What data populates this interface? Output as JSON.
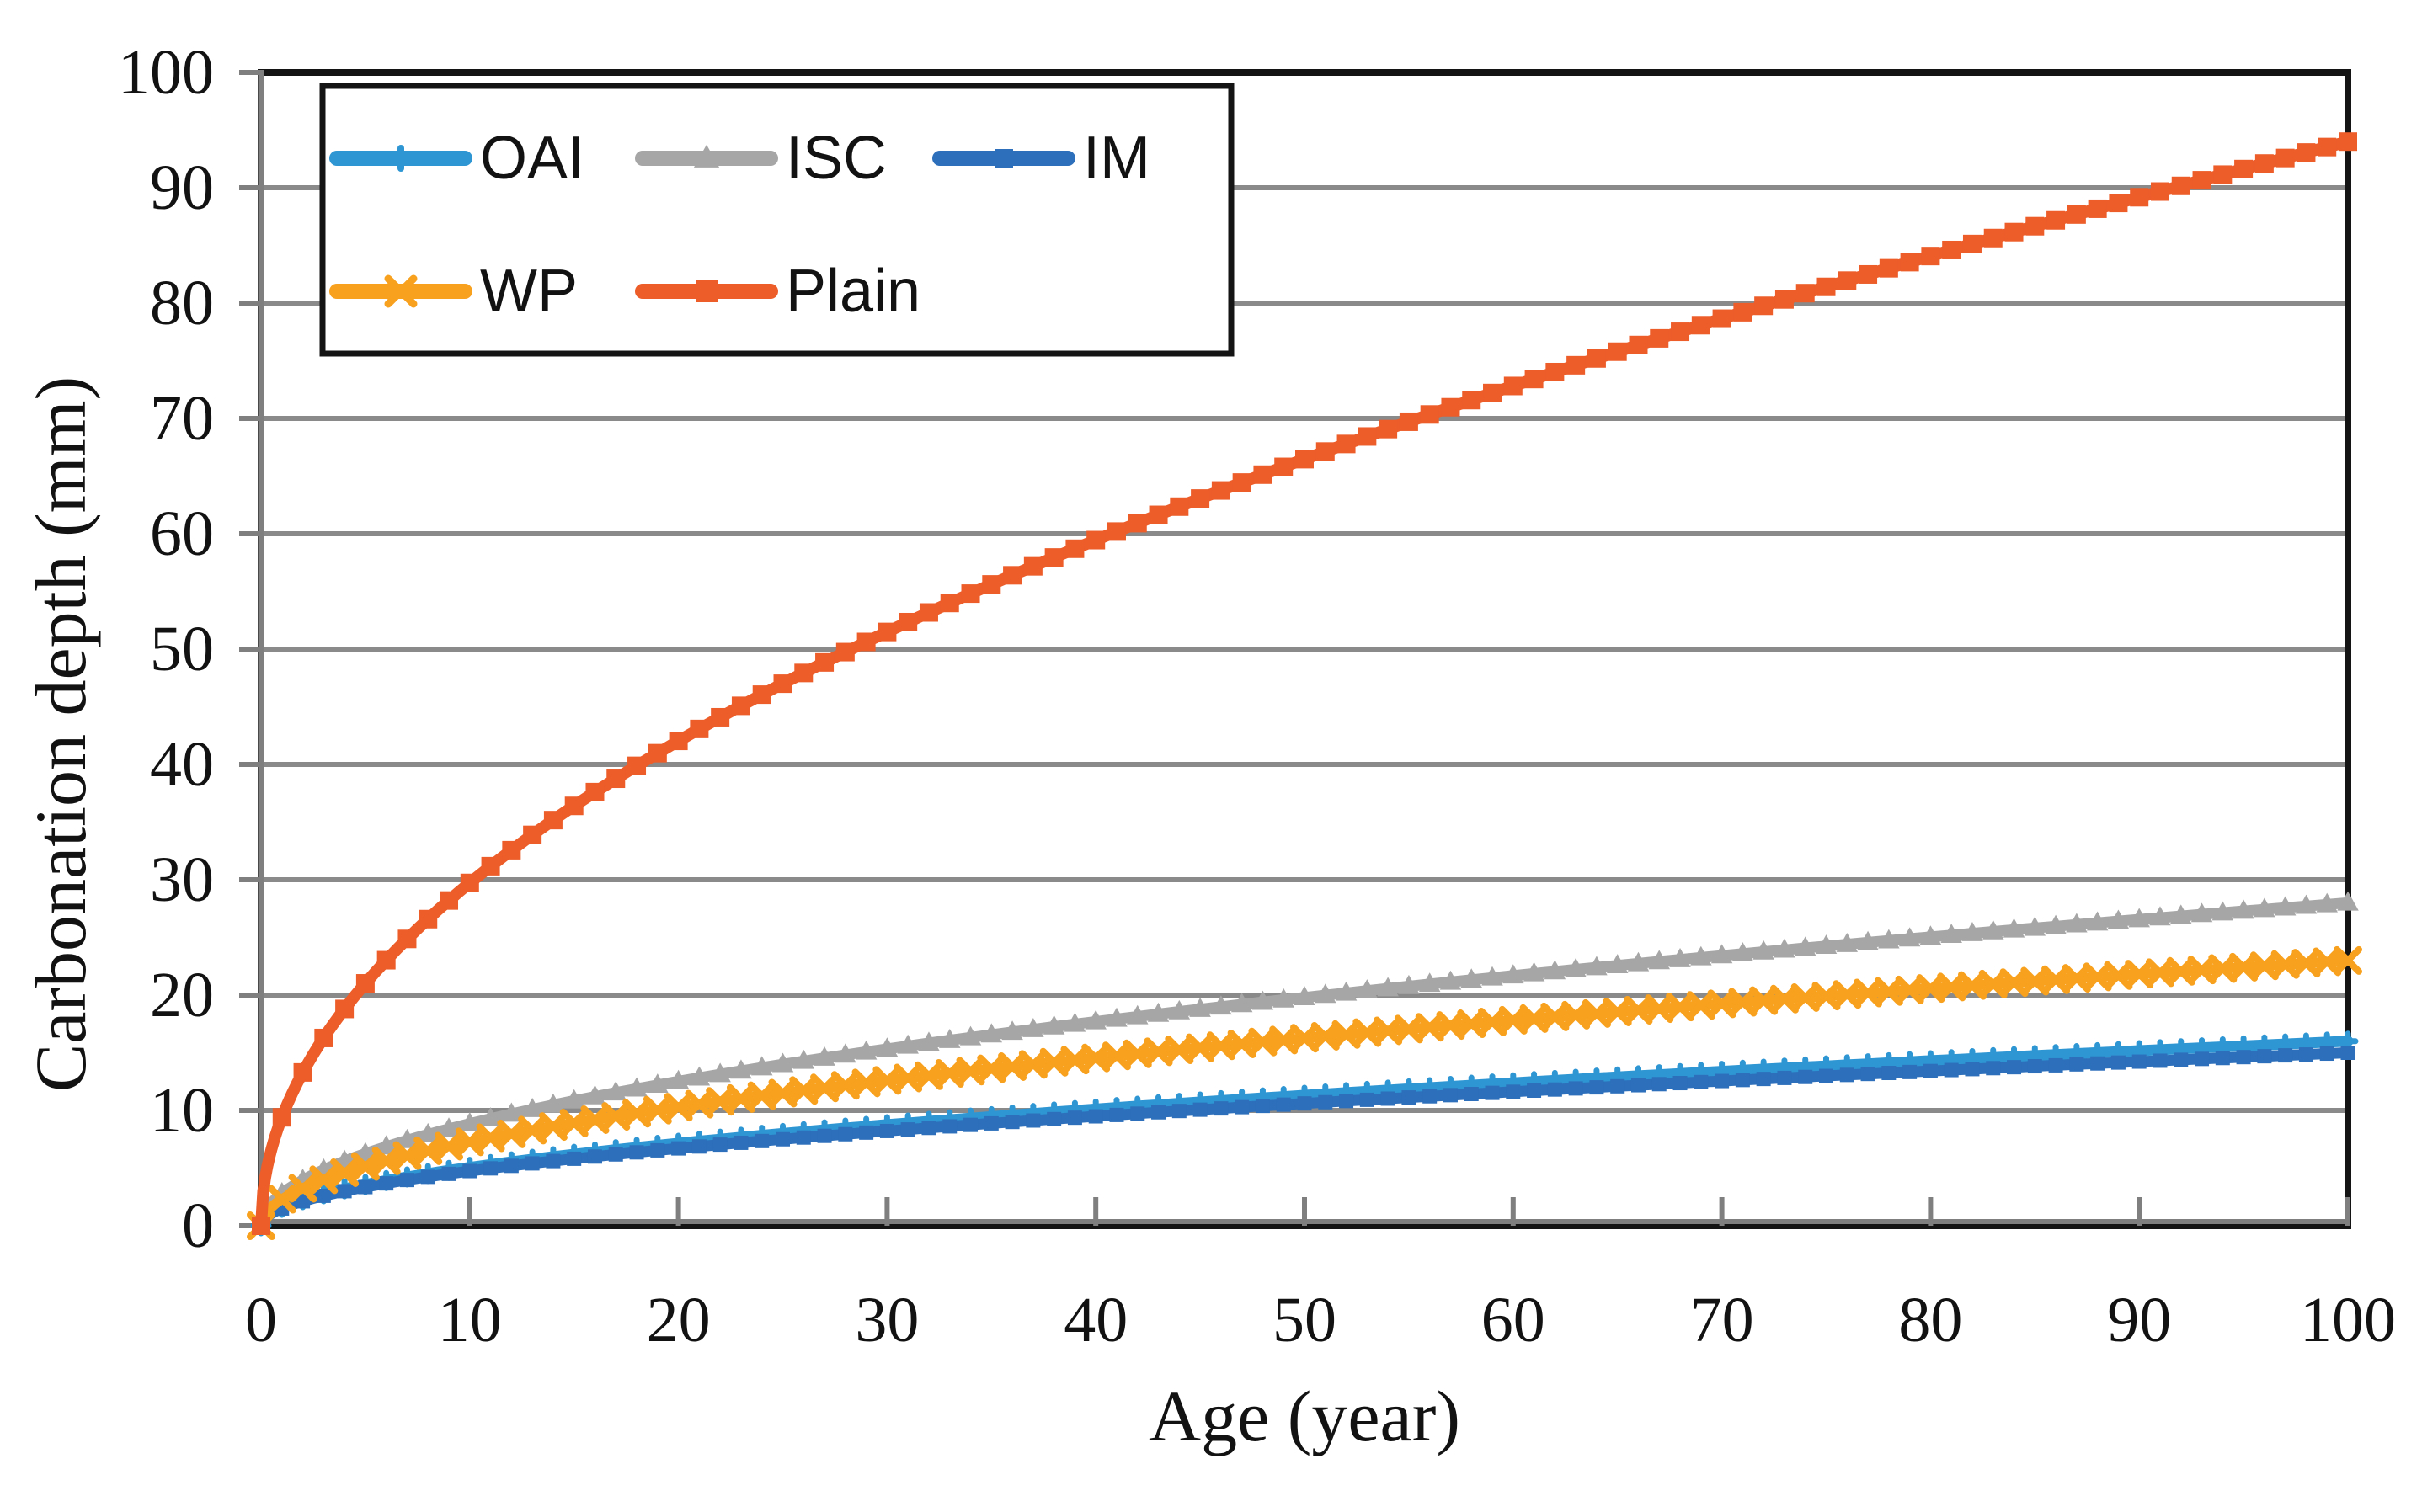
{
  "chart_data": {
    "type": "line",
    "title": "",
    "xlabel": "Age (year)",
    "ylabel": "Carbonation depth (mm)",
    "xlim": [
      0,
      100
    ],
    "ylim": [
      0,
      100
    ],
    "xticks": [
      0,
      10,
      20,
      30,
      40,
      50,
      60,
      70,
      80,
      90,
      100
    ],
    "yticks": [
      0,
      10,
      20,
      30,
      40,
      50,
      60,
      70,
      80,
      90,
      100
    ],
    "grid": "horizontal gridlines every 10 mm",
    "legend_position": "top-left inside plot, boxed, 2 rows (OAI ISC IM / WP Plain)",
    "model": "depth_mm = k * sqrt(age_years)",
    "x_sample_years": [
      0,
      10,
      20,
      30,
      40,
      50,
      60,
      70,
      80,
      90,
      100
    ],
    "series": [
      {
        "name": "OAI",
        "color": "#2E96D3",
        "marker": "plus",
        "k": 1.6,
        "depth_mm": [
          0,
          5.1,
          7.2,
          8.8,
          10.1,
          11.3,
          12.4,
          13.4,
          14.3,
          15.2,
          16.0
        ]
      },
      {
        "name": "ISC",
        "color": "#A6A6A6",
        "marker": "triangle",
        "k": 2.8,
        "depth_mm": [
          0,
          8.9,
          12.5,
          15.3,
          17.7,
          19.8,
          21.7,
          23.4,
          25.0,
          26.6,
          28.0
        ]
      },
      {
        "name": "IM",
        "color": "#2D6FBA",
        "marker": "square",
        "k": 1.5,
        "depth_mm": [
          0,
          4.7,
          6.7,
          8.2,
          9.5,
          10.6,
          11.6,
          12.5,
          13.4,
          14.2,
          15.0
        ]
      },
      {
        "name": "WP",
        "color": "#F7A11E",
        "marker": "x",
        "k": 2.3,
        "depth_mm": [
          0,
          7.3,
          10.3,
          12.6,
          14.5,
          16.3,
          17.8,
          19.2,
          20.6,
          21.8,
          23.0
        ]
      },
      {
        "name": "Plain",
        "color": "#EC5D2A",
        "marker": "square",
        "k": 9.4,
        "depth_mm": [
          0,
          29.7,
          42.0,
          51.5,
          59.4,
          66.5,
          72.8,
          78.6,
          84.1,
          89.2,
          94.0
        ]
      }
    ],
    "colors": {
      "gridline": "#8A8A8A",
      "frame": "#141414",
      "axis_line": "#7F7F7F",
      "tick": "#7F7F7F",
      "text": "#121212",
      "legend_border": "#141414",
      "background": "#FFFFFF"
    }
  }
}
